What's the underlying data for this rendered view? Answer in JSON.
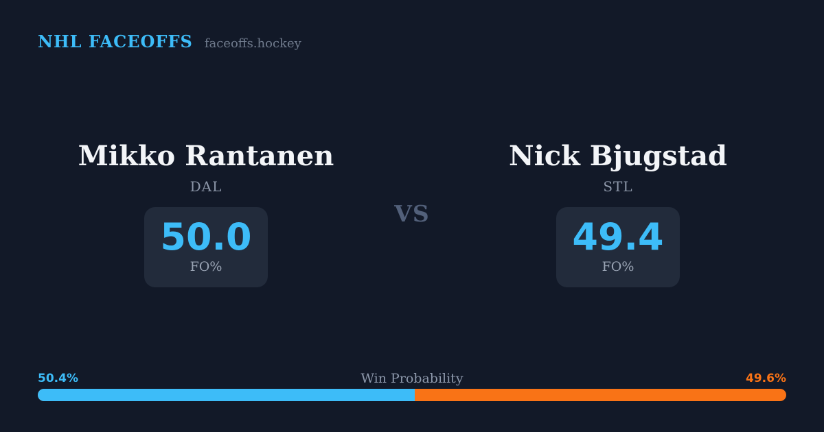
{
  "colors": {
    "background": "#121928",
    "card_background": "#222b3b",
    "accent_blue": "#3dbcf8",
    "accent_orange": "#f97316"
  },
  "header": {
    "brand": "NHL FACEOFFS",
    "site": "faceoffs.hockey"
  },
  "matchup": {
    "vs_label": "VS",
    "players": [
      {
        "name": "Mikko Rantanen",
        "team": "DAL",
        "stat_value": "50.0",
        "stat_label": "FO%"
      },
      {
        "name": "Nick Bjugstad",
        "team": "STL",
        "stat_value": "49.4",
        "stat_label": "FO%"
      }
    ]
  },
  "win_probability": {
    "label": "Win Probability",
    "left_pct_label": "50.4%",
    "right_pct_label": "49.6%",
    "left_value": 50.4,
    "right_value": 49.6
  }
}
